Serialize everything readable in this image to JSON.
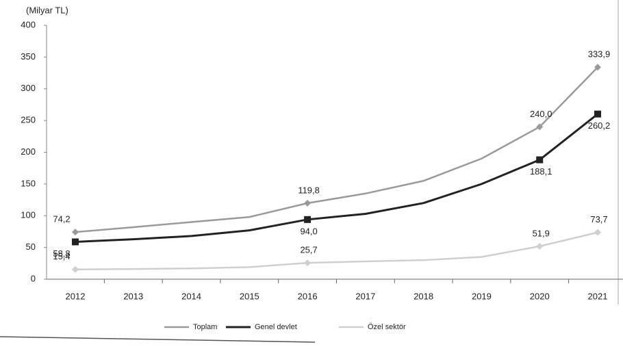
{
  "chart_data": {
    "type": "line",
    "y_label": "(Milyar TL)",
    "categories": [
      "2012",
      "2013",
      "2014",
      "2015",
      "2016",
      "2017",
      "2018",
      "2019",
      "2020",
      "2021"
    ],
    "ylim": [
      0,
      400
    ],
    "yticks": [
      0,
      50,
      100,
      150,
      200,
      250,
      300,
      350,
      400
    ],
    "grid": false,
    "legend": "bottom",
    "series": [
      {
        "name": "Toplam",
        "color": "#9a9a9a",
        "marker": "diamond",
        "values": [
          74.2,
          82,
          90,
          98,
          119.8,
          135,
          155,
          190,
          240.0,
          333.9
        ],
        "value_labels": [
          "74,2",
          null,
          null,
          null,
          "119,8",
          null,
          null,
          null,
          "240,0",
          "333,9"
        ]
      },
      {
        "name": "Genel devlet",
        "color": "#222222",
        "marker": "square",
        "values": [
          58.8,
          63,
          68,
          77,
          94.0,
          103,
          120,
          150,
          188.1,
          260.2
        ],
        "value_labels": [
          "58,8",
          null,
          null,
          null,
          "94,0",
          null,
          null,
          null,
          "188,1",
          "260,2"
        ]
      },
      {
        "name": "Özel sektör",
        "color": "#cfcfcf",
        "marker": "diamond",
        "values": [
          15.4,
          16,
          17,
          19,
          25.7,
          28,
          30,
          35,
          51.9,
          73.7
        ],
        "value_labels": [
          "15,4",
          null,
          null,
          null,
          "25,7",
          null,
          null,
          null,
          "51,9",
          "73,7"
        ]
      }
    ]
  }
}
